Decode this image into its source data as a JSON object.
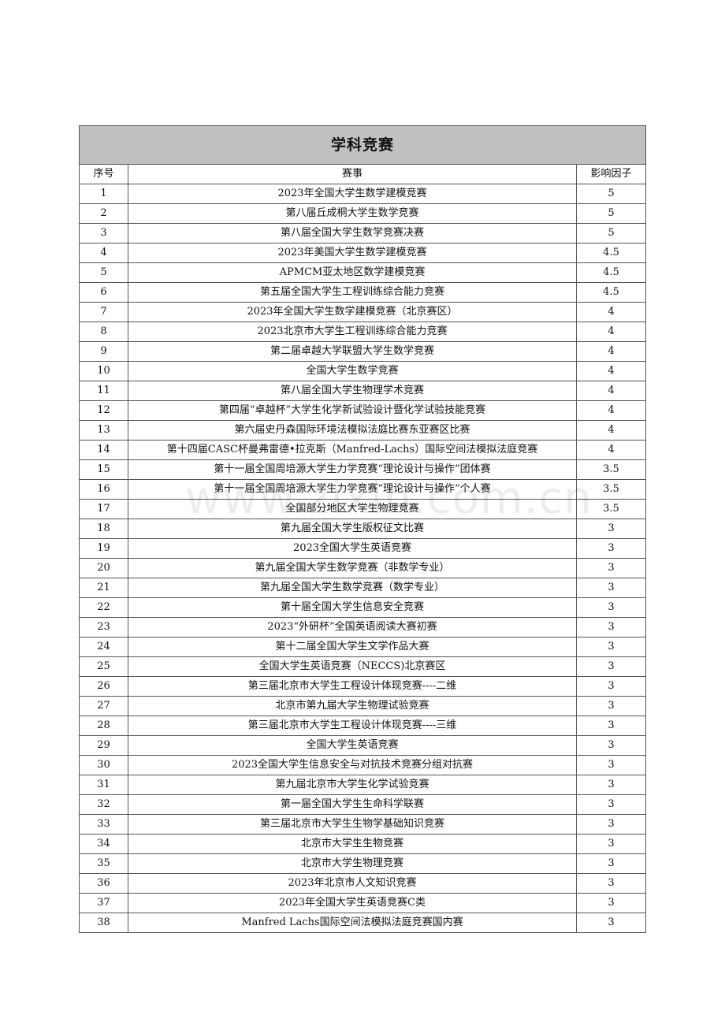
{
  "table": {
    "title": "学科竞赛",
    "headers": [
      "序号",
      "赛事",
      "影响因子"
    ],
    "rows": [
      [
        "1",
        "2023年全国大学生数学建模竞赛",
        "5"
      ],
      [
        "2",
        "第八届丘成桐大学生数学竞赛",
        "5"
      ],
      [
        "3",
        "第八届全国大学生数学竞赛决赛",
        "5"
      ],
      [
        "4",
        "2023年美国大学生数学建模竞赛",
        "4.5"
      ],
      [
        "5",
        "APMCM亚太地区数学建模竞赛",
        "4.5"
      ],
      [
        "6",
        "第五届全国大学生工程训练综合能力竞赛",
        "4.5"
      ],
      [
        "7",
        "2023年全国大学生数学建模竞赛（北京赛区）",
        "4"
      ],
      [
        "8",
        "2023北京市大学生工程训练综合能力竞赛",
        "4"
      ],
      [
        "9",
        "第二届卓越大学联盟大学生数学竞赛",
        "4"
      ],
      [
        "10",
        "全国大学生数学竞赛",
        "4"
      ],
      [
        "11",
        "第八届全国大学生物理学术竞赛",
        "4"
      ],
      [
        "12",
        "第四届“卓越杯”大学生化学新试验设计暨化学试验技能竞赛",
        "4"
      ],
      [
        "13",
        "第六届史丹森国际环境法模拟法庭比赛东亚赛区比赛",
        "4"
      ],
      [
        "14",
        "第十四届CASC杯曼弗雷德•拉克斯（Manfred-Lachs）国际空间法模拟法庭竞赛",
        "4"
      ],
      [
        "15",
        "第十一届全国周培源大学生力学竞赛“理论设计与操作”团体赛",
        "3.5"
      ],
      [
        "16",
        "第十一届全国周培源大学生力学竞赛“理论设计与操作”个人赛",
        "3.5"
      ],
      [
        "17",
        "全国部分地区大学生物理竞赛",
        "3.5"
      ],
      [
        "18",
        "第九届全国大学生版权征文比赛",
        "3"
      ],
      [
        "19",
        "2023全国大学生英语竞赛",
        "3"
      ],
      [
        "20",
        "第九届全国大学生数学竞赛（非数学专业）",
        "3"
      ],
      [
        "21",
        "第九届全国大学生数学竞赛（数学专业）",
        "3"
      ],
      [
        "22",
        "第十届全国大学生信息安全竞赛",
        "3"
      ],
      [
        "23",
        "2023“外研杯”全国英语阅读大赛初赛",
        "3"
      ],
      [
        "24",
        "第十二届全国大学生文学作品大赛",
        "3"
      ],
      [
        "25",
        "全国大学生英语竞赛（NECCS)北京赛区",
        "3"
      ],
      [
        "26",
        "第三届北京市大学生工程设计体现竞赛----二维",
        "3"
      ],
      [
        "27",
        "北京市第九届大学生物理试验竞赛",
        "3"
      ],
      [
        "28",
        "第三届北京市大学生工程设计体现竞赛----三维",
        "3"
      ],
      [
        "29",
        "全国大学生英语竞赛",
        "3"
      ],
      [
        "30",
        "2023全国大学生信息安全与对抗技术竞赛分组对抗赛",
        "3"
      ],
      [
        "31",
        "第九届北京市大学生化学试验竞赛",
        "3"
      ],
      [
        "32",
        "第一届全国大学生生命科学联赛",
        "3"
      ],
      [
        "33",
        "第三届北京市大学生生物学基础知识竞赛",
        "3"
      ],
      [
        "34",
        "北京市大学生生物竞赛",
        "3"
      ],
      [
        "35",
        "北京市大学生物理竞赛",
        "3"
      ],
      [
        "36",
        "2023年北京市人文知识竞赛",
        "3"
      ],
      [
        "37",
        "2023年全国大学生英语竞赛C类",
        "3"
      ],
      [
        "38",
        "Manfred Lachs国际空间法模拟法庭竞赛国内赛",
        "3"
      ]
    ]
  },
  "watermark": "www.zixin.com.cn",
  "colors": {
    "title_bg": "#c0c0c0",
    "border": "#555555"
  }
}
